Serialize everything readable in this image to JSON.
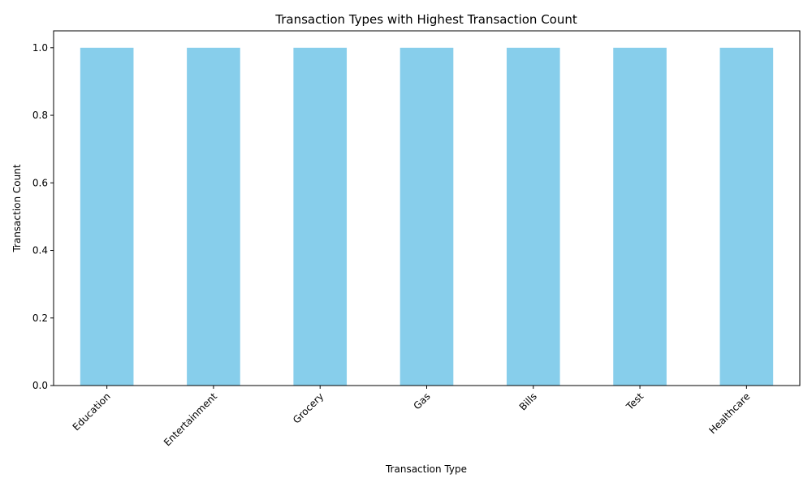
{
  "chart_data": {
    "type": "bar",
    "title": "Transaction Types with Highest Transaction Count",
    "xlabel": "Transaction Type",
    "ylabel": "Transaction Count",
    "categories": [
      "Education",
      "Entertainment",
      "Grocery",
      "Gas",
      "Bills",
      "Test",
      "Healthcare"
    ],
    "values": [
      1,
      1,
      1,
      1,
      1,
      1,
      1
    ],
    "ylim": [
      0,
      1.05
    ],
    "yticks": [
      0.0,
      0.2,
      0.4,
      0.6,
      0.8,
      1.0
    ],
    "ytick_labels": [
      "0.0",
      "0.2",
      "0.4",
      "0.6",
      "0.8",
      "1.0"
    ],
    "xtick_rotation_deg": 45,
    "bar_color": "#87ceeb",
    "grid": false,
    "legend": "none"
  }
}
